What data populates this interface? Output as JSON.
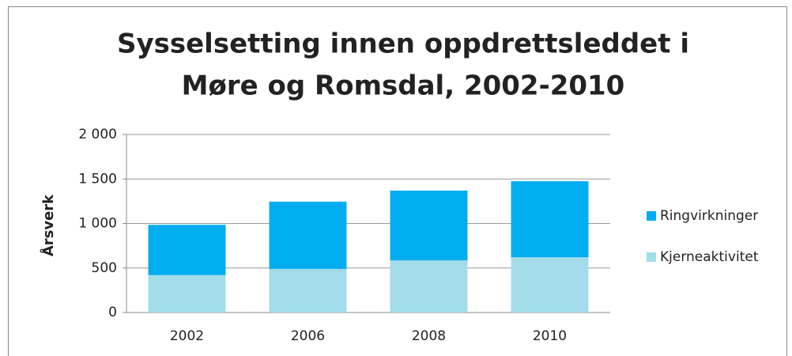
{
  "chart_data": {
    "type": "stacked_bar",
    "title": [
      "Sysselsetting innen oppdrettsleddet i",
      "Møre og Romsdal, 2002-2010"
    ],
    "y_label": "Årsverk",
    "categories": [
      "2002",
      "2006",
      "2008",
      "2010"
    ],
    "series": [
      {
        "name": "Kjerneaktivitet",
        "color": "#a3dce9",
        "values": [
          420,
          490,
          585,
          620
        ]
      },
      {
        "name": "Ringvirkninger",
        "color": "#00adef",
        "values": [
          565,
          755,
          785,
          855
        ]
      }
    ],
    "ylim": [
      0,
      2000
    ],
    "yticks": [
      0,
      500,
      {
        "value": 1000,
        "label": "1 000"
      },
      {
        "value": 1500,
        "label": "1 500"
      },
      {
        "value": 2000,
        "label": "2 000"
      }
    ],
    "grid": true,
    "legend": "right"
  }
}
